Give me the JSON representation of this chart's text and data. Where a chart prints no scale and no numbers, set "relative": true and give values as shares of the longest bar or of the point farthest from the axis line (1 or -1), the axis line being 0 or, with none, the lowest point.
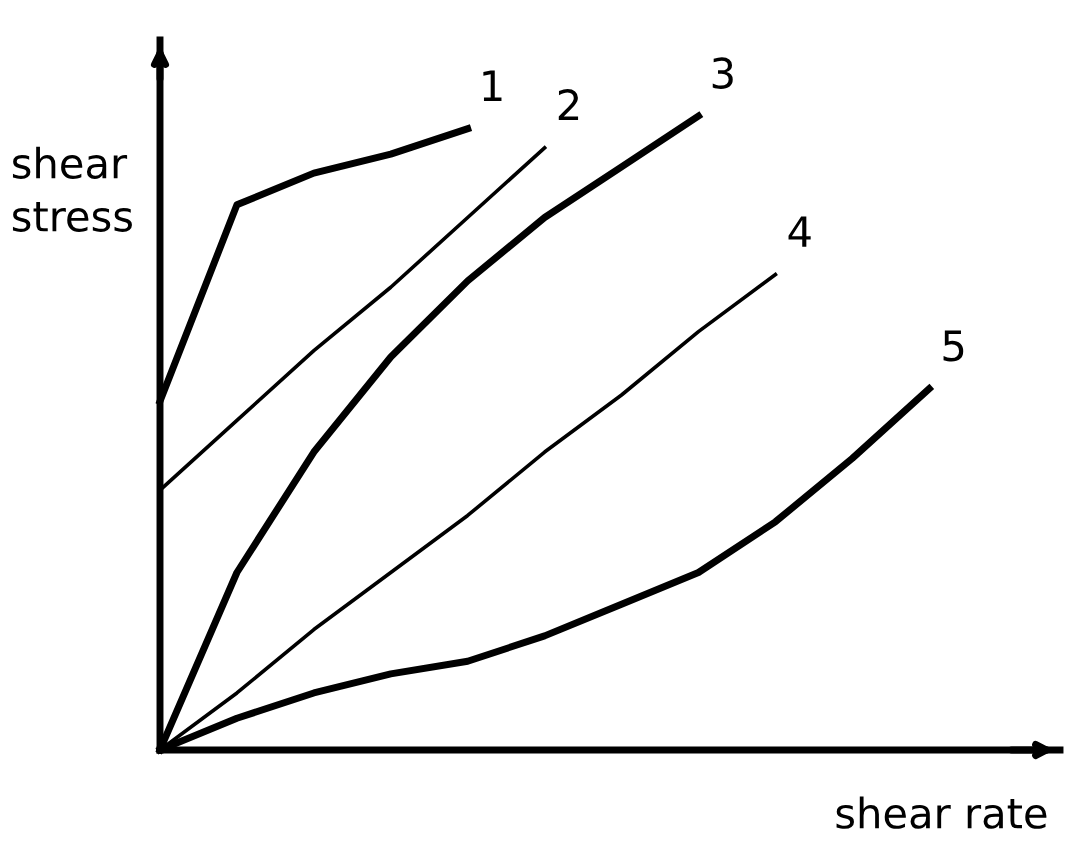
{
  "chart_data": {
    "type": "line",
    "relative": true,
    "xlabel": "shear rate",
    "ylabel": "shear stress",
    "marker": "none",
    "line_style": "solid",
    "legend": false,
    "categories": [
      null,
      null,
      null,
      null,
      null,
      null,
      null,
      null,
      null,
      null,
      null
    ],
    "series": [
      {
        "name": "1",
        "color": "#000000",
        "values": [
          0.55,
          0.86,
          0.91,
          0.94,
          0.98,
          null,
          null,
          null,
          null,
          null,
          null
        ]
      },
      {
        "name": "2",
        "color": "#000000",
        "values": [
          0.41,
          0.52,
          0.63,
          0.73,
          0.84,
          0.95,
          null,
          null,
          null,
          null,
          null
        ]
      },
      {
        "name": "3",
        "color": "#000000",
        "values": [
          0,
          0.28,
          0.47,
          0.62,
          0.74,
          0.84,
          0.92,
          1,
          null,
          null,
          null
        ]
      },
      {
        "name": "4",
        "color": "#000000",
        "values": [
          0,
          0.09,
          0.19,
          0.28,
          0.37,
          0.47,
          0.56,
          0.66,
          0.75,
          null,
          null
        ]
      },
      {
        "name": "5",
        "color": "#000000",
        "values": [
          0,
          0.05,
          0.09,
          0.12,
          0.14,
          0.18,
          0.23,
          0.28,
          0.36,
          0.46,
          0.57
        ]
      }
    ]
  }
}
